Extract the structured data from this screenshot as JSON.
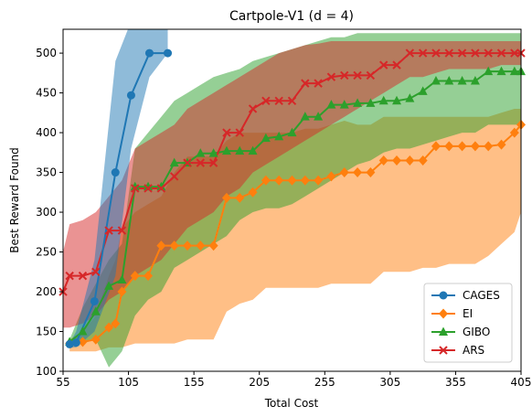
{
  "chart_data": {
    "type": "line",
    "title": "Cartpole-V1 (d = 4)",
    "xlabel": "Total Cost",
    "ylabel": "Best Reward Found",
    "xlim": [
      55,
      405
    ],
    "ylim": [
      100,
      530
    ],
    "xticks": [
      55,
      105,
      155,
      205,
      255,
      305,
      355,
      405
    ],
    "yticks": [
      100,
      150,
      200,
      250,
      300,
      350,
      400,
      450,
      500
    ],
    "grid": false,
    "legend_position": "bottom-right",
    "series": [
      {
        "name": "CAGES",
        "color": "#1f77b4",
        "marker": "circle",
        "x": [
          60,
          65,
          79,
          95,
          107,
          121,
          135
        ],
        "y": [
          134,
          136,
          188,
          350,
          447,
          500,
          500
        ],
        "band_upper": [
          135,
          150,
          240,
          490,
          540,
          530,
          530
        ],
        "band_lower": [
          130,
          130,
          150,
          220,
          380,
          470,
          500
        ]
      },
      {
        "name": "EI",
        "color": "#ff7f0e",
        "marker": "diamond",
        "x": [
          60,
          70,
          80,
          90,
          95,
          100,
          110,
          120,
          130,
          140,
          150,
          160,
          170,
          180,
          190,
          200,
          210,
          220,
          230,
          240,
          250,
          260,
          270,
          280,
          290,
          300,
          310,
          320,
          330,
          340,
          350,
          360,
          370,
          380,
          390,
          400,
          405
        ],
        "y": [
          135,
          137,
          140,
          155,
          160,
          200,
          220,
          220,
          258,
          258,
          258,
          258,
          258,
          318,
          318,
          325,
          340,
          340,
          340,
          340,
          340,
          345,
          350,
          350,
          350,
          365,
          365,
          365,
          365,
          383,
          383,
          383,
          383,
          383,
          385,
          400,
          410
        ],
        "band_upper": [
          140,
          150,
          170,
          220,
          240,
          280,
          300,
          310,
          320,
          350,
          370,
          370,
          370,
          390,
          400,
          400,
          400,
          400,
          400,
          405,
          405,
          410,
          415,
          410,
          410,
          420,
          420,
          420,
          420,
          420,
          420,
          420,
          420,
          420,
          425,
          430,
          430
        ],
        "band_lower": [
          125,
          125,
          125,
          130,
          130,
          130,
          135,
          135,
          135,
          135,
          140,
          140,
          140,
          175,
          185,
          190,
          205,
          205,
          205,
          205,
          205,
          210,
          210,
          210,
          210,
          225,
          225,
          225,
          230,
          230,
          235,
          235,
          235,
          245,
          260,
          275,
          300
        ]
      },
      {
        "name": "GIBO",
        "color": "#2ca02c",
        "marker": "triangle",
        "x": [
          60,
          70,
          80,
          90,
          100,
          110,
          120,
          130,
          140,
          150,
          160,
          170,
          180,
          190,
          200,
          210,
          220,
          230,
          240,
          250,
          260,
          270,
          280,
          290,
          300,
          310,
          320,
          330,
          340,
          350,
          360,
          370,
          380,
          390,
          400,
          405
        ],
        "y": [
          137,
          150,
          175,
          207,
          215,
          332,
          332,
          332,
          362,
          362,
          374,
          374,
          377,
          377,
          377,
          393,
          395,
          400,
          420,
          420,
          435,
          435,
          437,
          437,
          440,
          440,
          443,
          452,
          465,
          465,
          465,
          465,
          477,
          477,
          477,
          477
        ],
        "band_upper": [
          140,
          180,
          210,
          240,
          260,
          380,
          400,
          420,
          440,
          450,
          460,
          470,
          475,
          480,
          490,
          495,
          500,
          505,
          510,
          515,
          520,
          520,
          525,
          525,
          525,
          525,
          525,
          525,
          525,
          525,
          525,
          525,
          525,
          525,
          525,
          525
        ],
        "band_lower": [
          133,
          135,
          140,
          105,
          125,
          170,
          190,
          200,
          230,
          240,
          250,
          260,
          270,
          290,
          300,
          305,
          305,
          310,
          320,
          330,
          340,
          350,
          360,
          365,
          375,
          380,
          380,
          385,
          390,
          395,
          400,
          400,
          410,
          410,
          410,
          410
        ]
      },
      {
        "name": "ARS",
        "color": "#d62728",
        "marker": "x",
        "x": [
          55,
          60,
          70,
          80,
          90,
          100,
          110,
          120,
          130,
          140,
          150,
          160,
          170,
          180,
          190,
          200,
          210,
          220,
          230,
          240,
          250,
          260,
          270,
          280,
          290,
          300,
          310,
          320,
          330,
          340,
          350,
          360,
          370,
          380,
          390,
          400,
          405
        ],
        "y": [
          200,
          220,
          220,
          225,
          277,
          277,
          330,
          330,
          330,
          345,
          362,
          362,
          362,
          400,
          400,
          430,
          440,
          440,
          440,
          462,
          462,
          470,
          472,
          472,
          472,
          485,
          485,
          500,
          500,
          500,
          500,
          500,
          500,
          500,
          500,
          500,
          500
        ],
        "band_upper": [
          250,
          285,
          290,
          300,
          320,
          340,
          380,
          390,
          400,
          410,
          430,
          440,
          450,
          460,
          470,
          480,
          490,
          500,
          505,
          510,
          512,
          515,
          515,
          515,
          515,
          515,
          515,
          515,
          515,
          515,
          515,
          515,
          515,
          515,
          515,
          515,
          515
        ],
        "band_lower": [
          155,
          155,
          160,
          170,
          190,
          200,
          220,
          230,
          240,
          260,
          280,
          290,
          300,
          320,
          330,
          350,
          360,
          370,
          380,
          390,
          400,
          410,
          420,
          430,
          440,
          450,
          460,
          470,
          470,
          475,
          480,
          480,
          480,
          480,
          485,
          485,
          485
        ]
      }
    ]
  }
}
